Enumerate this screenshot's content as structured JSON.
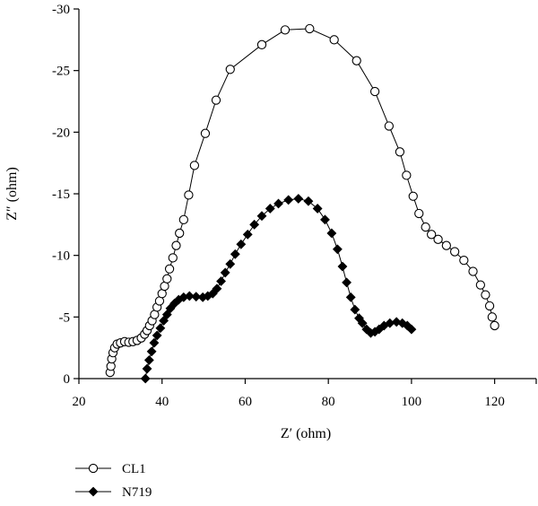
{
  "chart_data": {
    "type": "scatter",
    "xlabel": "Z′ (ohm)",
    "ylabel": "Z″ (ohm)",
    "xlim": [
      20,
      130
    ],
    "ylim": [
      0,
      -30
    ],
    "x_ticks": [
      20,
      40,
      60,
      80,
      100,
      120
    ],
    "y_ticks": [
      0,
      -5,
      -10,
      -15,
      -20,
      -25,
      -30
    ],
    "grid": false,
    "legend_position": "bottom-left",
    "series": [
      {
        "name": "CL1",
        "marker": "open-circle",
        "line": true,
        "points": [
          [
            27.5,
            -0.5
          ],
          [
            27.7,
            -1.0
          ],
          [
            27.9,
            -1.6
          ],
          [
            28.2,
            -2.1
          ],
          [
            28.6,
            -2.5
          ],
          [
            29.2,
            -2.8
          ],
          [
            30.0,
            -2.9
          ],
          [
            31.0,
            -3.0
          ],
          [
            32.0,
            -2.95
          ],
          [
            33.0,
            -3.0
          ],
          [
            34.0,
            -3.1
          ],
          [
            35.0,
            -3.3
          ],
          [
            35.8,
            -3.6
          ],
          [
            36.4,
            -3.9
          ],
          [
            37.0,
            -4.3
          ],
          [
            37.6,
            -4.7
          ],
          [
            38.2,
            -5.2
          ],
          [
            38.8,
            -5.8
          ],
          [
            39.4,
            -6.3
          ],
          [
            40.0,
            -6.9
          ],
          [
            40.6,
            -7.5
          ],
          [
            41.2,
            -8.1
          ],
          [
            41.8,
            -8.9
          ],
          [
            42.6,
            -9.8
          ],
          [
            43.4,
            -10.8
          ],
          [
            44.2,
            -11.8
          ],
          [
            45.2,
            -12.9
          ],
          [
            46.4,
            -14.9
          ],
          [
            47.8,
            -17.3
          ],
          [
            50.4,
            -19.9
          ],
          [
            53.0,
            -22.6
          ],
          [
            56.4,
            -25.1
          ],
          [
            64.0,
            -27.1
          ],
          [
            69.6,
            -28.3
          ],
          [
            75.5,
            -28.4
          ],
          [
            81.4,
            -27.5
          ],
          [
            86.8,
            -25.8
          ],
          [
            91.2,
            -23.3
          ],
          [
            94.6,
            -20.5
          ],
          [
            97.2,
            -18.4
          ],
          [
            98.8,
            -16.5
          ],
          [
            100.4,
            -14.8
          ],
          [
            101.8,
            -13.4
          ],
          [
            103.4,
            -12.3
          ],
          [
            104.8,
            -11.7
          ],
          [
            106.4,
            -11.3
          ],
          [
            108.4,
            -10.8
          ],
          [
            110.4,
            -10.3
          ],
          [
            112.6,
            -9.6
          ],
          [
            114.8,
            -8.7
          ],
          [
            116.6,
            -7.6
          ],
          [
            117.8,
            -6.8
          ],
          [
            118.8,
            -5.9
          ],
          [
            119.4,
            -5.0
          ],
          [
            120.0,
            -4.3
          ]
        ]
      },
      {
        "name": "N719",
        "marker": "filled-diamond",
        "line": true,
        "points": [
          [
            36.0,
            0.0
          ],
          [
            36.4,
            -0.8
          ],
          [
            36.9,
            -1.5
          ],
          [
            37.5,
            -2.2
          ],
          [
            38.1,
            -2.9
          ],
          [
            38.8,
            -3.5
          ],
          [
            39.6,
            -4.1
          ],
          [
            40.4,
            -4.7
          ],
          [
            41.2,
            -5.2
          ],
          [
            42.0,
            -5.7
          ],
          [
            43.0,
            -6.1
          ],
          [
            44.0,
            -6.4
          ],
          [
            45.2,
            -6.6
          ],
          [
            46.6,
            -6.7
          ],
          [
            48.2,
            -6.65
          ],
          [
            49.8,
            -6.6
          ],
          [
            51.0,
            -6.7
          ],
          [
            52.2,
            -6.9
          ],
          [
            53.2,
            -7.3
          ],
          [
            54.2,
            -7.9
          ],
          [
            55.2,
            -8.6
          ],
          [
            56.4,
            -9.3
          ],
          [
            57.6,
            -10.1
          ],
          [
            59.0,
            -10.9
          ],
          [
            60.6,
            -11.7
          ],
          [
            62.2,
            -12.5
          ],
          [
            64.0,
            -13.2
          ],
          [
            66.0,
            -13.8
          ],
          [
            68.0,
            -14.2
          ],
          [
            70.4,
            -14.5
          ],
          [
            72.8,
            -14.6
          ],
          [
            75.2,
            -14.4
          ],
          [
            77.4,
            -13.8
          ],
          [
            79.2,
            -12.9
          ],
          [
            80.8,
            -11.8
          ],
          [
            82.2,
            -10.5
          ],
          [
            83.4,
            -9.1
          ],
          [
            84.4,
            -7.8
          ],
          [
            85.4,
            -6.6
          ],
          [
            86.4,
            -5.6
          ],
          [
            87.4,
            -4.9
          ],
          [
            88.2,
            -4.5
          ],
          [
            89.2,
            -4.0
          ],
          [
            90.2,
            -3.7
          ],
          [
            91.2,
            -3.8
          ],
          [
            92.2,
            -4.0
          ],
          [
            93.4,
            -4.3
          ],
          [
            94.8,
            -4.5
          ],
          [
            96.4,
            -4.6
          ],
          [
            97.8,
            -4.5
          ],
          [
            99.0,
            -4.3
          ],
          [
            100.0,
            -4.0
          ]
        ]
      }
    ]
  }
}
